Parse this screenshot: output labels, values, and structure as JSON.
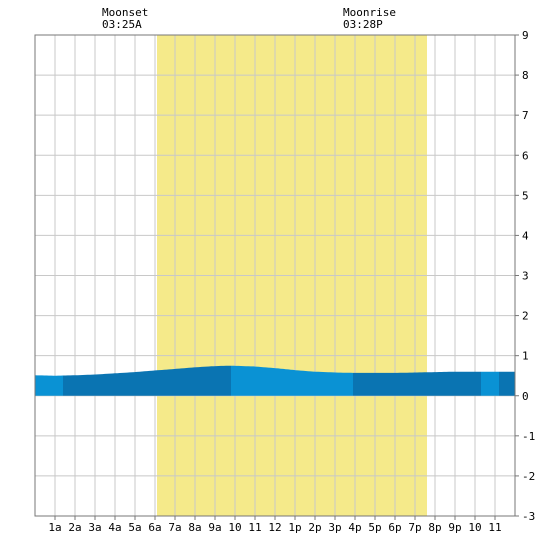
{
  "chart_data": {
    "type": "area",
    "x_ticks": [
      "1a",
      "2a",
      "3a",
      "4a",
      "5a",
      "6a",
      "7a",
      "8a",
      "9a",
      "10",
      "11",
      "12",
      "1p",
      "2p",
      "3p",
      "4p",
      "5p",
      "6p",
      "7p",
      "8p",
      "9p",
      "10",
      "11"
    ],
    "x_range_hours": [
      0,
      24
    ],
    "y_ticks": [
      "9",
      "8",
      "7",
      "6",
      "5",
      "4",
      "3",
      "2",
      "1",
      "0",
      "-1",
      "-2",
      "-3"
    ],
    "y_range": [
      -3,
      9
    ],
    "grid": true,
    "daylight_hours": [
      6.1,
      19.6
    ],
    "annotations": [
      {
        "label": "Moonset",
        "time": "03:25A",
        "hour": 3.42
      },
      {
        "label": "Moonrise",
        "time": "03:28P",
        "hour": 15.47
      }
    ],
    "tide_series": {
      "x": [
        0,
        1,
        2,
        3,
        4,
        5,
        6,
        7,
        8,
        9,
        9.8,
        11,
        12,
        13,
        14,
        15,
        16,
        17,
        18,
        19,
        20,
        21,
        22,
        23,
        24
      ],
      "y": [
        0.51,
        0.5,
        0.51,
        0.53,
        0.56,
        0.59,
        0.63,
        0.67,
        0.71,
        0.74,
        0.75,
        0.73,
        0.69,
        0.64,
        0.6,
        0.58,
        0.57,
        0.57,
        0.57,
        0.58,
        0.59,
        0.6,
        0.6,
        0.6,
        0.6
      ]
    },
    "band_boundaries_hours": [
      1.4,
      9.8,
      15.9,
      22.3,
      23.2
    ],
    "colors": {
      "background": "#ffffff",
      "daylight": "#f5ea8a",
      "grid": "#c8c8c8",
      "tide_light": "#0a92d4",
      "tide_dark": "#0a74b2"
    }
  }
}
